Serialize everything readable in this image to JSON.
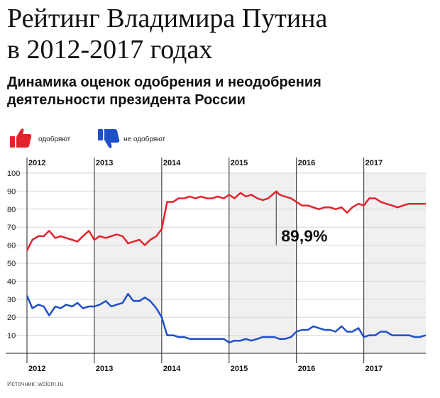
{
  "header": {
    "title_line1": "Рейтинг Владимира Путина",
    "title_line2": "в 2012-2017 годах",
    "subtitle_line1": "Динамика оценок одобрения и неодобрения",
    "subtitle_line2": "деятельности президента России"
  },
  "legend": {
    "approve": "одобряют",
    "disapprove": "не одобряют",
    "approve_icon": "thumbs-up-icon",
    "disapprove_icon": "thumbs-down-icon"
  },
  "source": "Источник: wciom.ru",
  "colors": {
    "approve": "#e3232b",
    "disapprove": "#1f4fc8",
    "band": "#f0f0f0",
    "grid": "#d6d6d6",
    "axis": "#222222"
  },
  "chart_data": {
    "type": "line",
    "x_unit": "year",
    "xlim": [
      2012.0,
      2017.92
    ],
    "ylim": [
      0,
      100
    ],
    "yticks": [
      10,
      20,
      30,
      40,
      50,
      60,
      70,
      80,
      90,
      100
    ],
    "year_labels": [
      "2012",
      "2013",
      "2014",
      "2015",
      "2016",
      "2017"
    ],
    "shaded_years": [
      "2013",
      "2015",
      "2017"
    ],
    "grid": true,
    "legend_position": "top-left",
    "annotation": {
      "text": "89,9%",
      "x": 2015.7,
      "y": 89.9
    },
    "series": [
      {
        "name": "одобряют",
        "color": "#e3232b",
        "x": [
          2012.0,
          2012.08,
          2012.17,
          2012.25,
          2012.33,
          2012.42,
          2012.5,
          2012.58,
          2012.67,
          2012.75,
          2012.83,
          2012.92,
          2013.0,
          2013.08,
          2013.17,
          2013.25,
          2013.33,
          2013.42,
          2013.5,
          2013.58,
          2013.67,
          2013.75,
          2013.83,
          2013.92,
          2014.0,
          2014.08,
          2014.17,
          2014.25,
          2014.33,
          2014.42,
          2014.5,
          2014.58,
          2014.67,
          2014.75,
          2014.83,
          2014.92,
          2015.0,
          2015.08,
          2015.17,
          2015.25,
          2015.33,
          2015.42,
          2015.5,
          2015.58,
          2015.7,
          2015.75,
          2015.83,
          2015.92,
          2016.0,
          2016.08,
          2016.17,
          2016.25,
          2016.33,
          2016.42,
          2016.5,
          2016.58,
          2016.67,
          2016.75,
          2016.83,
          2016.92,
          2017.0,
          2017.08,
          2017.17,
          2017.25,
          2017.33,
          2017.42,
          2017.5,
          2017.58,
          2017.67,
          2017.75,
          2017.83,
          2017.92
        ],
        "y": [
          57,
          63,
          65,
          65,
          68,
          64,
          65,
          64,
          63,
          62,
          65,
          68,
          63,
          65,
          64,
          65,
          66,
          65,
          61,
          62,
          63,
          60,
          63,
          65,
          69,
          84,
          84,
          86,
          86,
          87,
          86,
          87,
          86,
          86,
          87,
          86,
          88,
          86,
          89,
          87,
          88,
          86,
          85,
          86,
          89.9,
          88,
          87,
          86,
          84,
          82,
          82,
          81,
          80,
          81,
          81,
          80,
          81,
          78,
          81,
          83,
          82,
          86,
          86,
          84,
          83,
          82,
          81,
          82,
          83,
          83,
          83,
          83
        ]
      },
      {
        "name": "не одобряют",
        "color": "#1f4fc8",
        "x": [
          2012.0,
          2012.08,
          2012.17,
          2012.25,
          2012.33,
          2012.42,
          2012.5,
          2012.58,
          2012.67,
          2012.75,
          2012.83,
          2012.92,
          2013.0,
          2013.08,
          2013.17,
          2013.25,
          2013.33,
          2013.42,
          2013.5,
          2013.58,
          2013.67,
          2013.75,
          2013.83,
          2013.92,
          2014.0,
          2014.08,
          2014.17,
          2014.25,
          2014.33,
          2014.42,
          2014.5,
          2014.58,
          2014.67,
          2014.75,
          2014.83,
          2014.92,
          2015.0,
          2015.08,
          2015.17,
          2015.25,
          2015.33,
          2015.42,
          2015.5,
          2015.58,
          2015.67,
          2015.75,
          2015.83,
          2015.92,
          2016.0,
          2016.08,
          2016.17,
          2016.25,
          2016.33,
          2016.42,
          2016.5,
          2016.58,
          2016.67,
          2016.75,
          2016.83,
          2016.92,
          2017.0,
          2017.08,
          2017.17,
          2017.25,
          2017.33,
          2017.42,
          2017.5,
          2017.58,
          2017.67,
          2017.75,
          2017.83,
          2017.92
        ],
        "y": [
          32,
          25,
          27,
          26,
          21,
          26,
          25,
          27,
          26,
          28,
          25,
          26,
          26,
          27,
          29,
          26,
          27,
          28,
          33,
          29,
          29,
          31,
          29,
          25,
          20,
          10,
          10,
          9,
          9,
          8,
          8,
          8,
          8,
          8,
          8,
          8,
          6,
          7,
          7,
          8,
          7,
          8,
          9,
          9,
          9,
          8,
          8,
          9,
          12,
          13,
          13,
          15,
          14,
          13,
          13,
          12,
          15,
          12,
          12,
          14,
          9,
          10,
          10,
          12,
          12,
          10,
          10,
          10,
          10,
          9,
          9,
          10
        ]
      }
    ]
  }
}
